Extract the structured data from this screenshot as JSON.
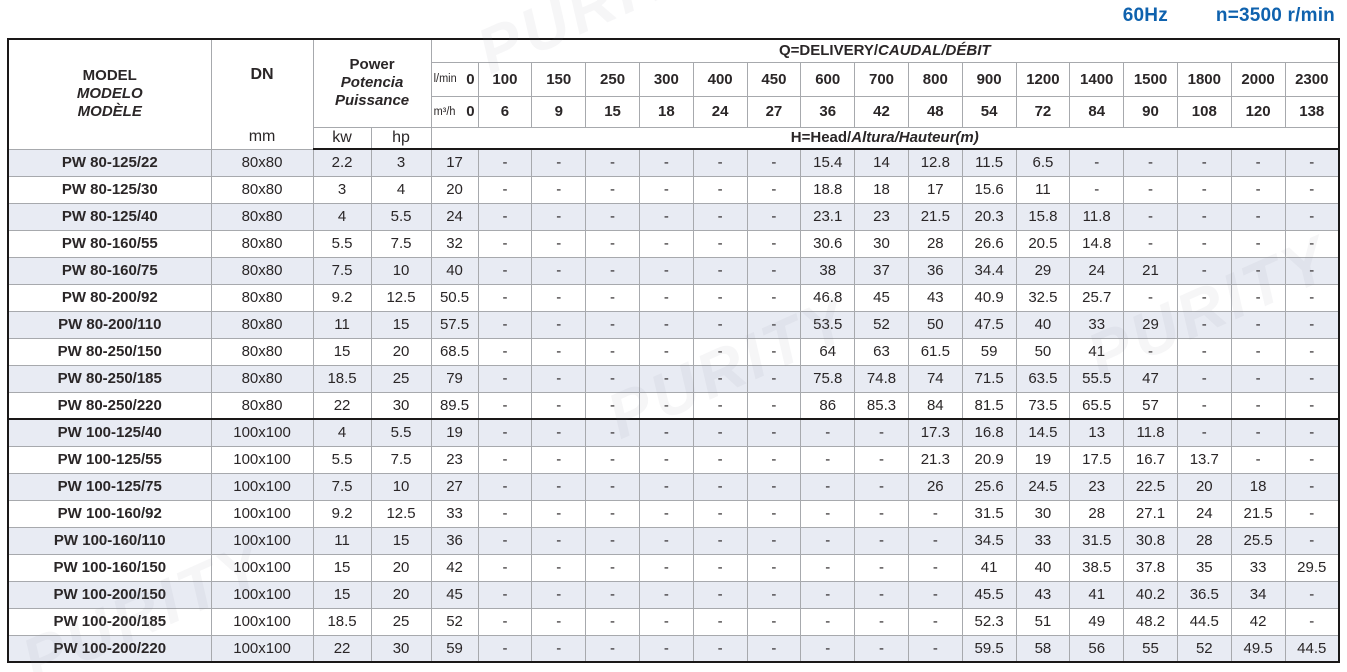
{
  "meta": {
    "frequency_label": "60Hz",
    "speed_label": "n=3500 r/min"
  },
  "watermark": {
    "text": "PURITY"
  },
  "table": {
    "header": {
      "model_line1": "MODEL",
      "model_line2": "MODELO",
      "model_line3": "MODÈLE",
      "dn_label": "DN",
      "dn_unit": "mm",
      "power_line1": "Power",
      "power_line2": "Potencia",
      "power_line3": "Puissance",
      "kw_label": "kw",
      "hp_label": "hp",
      "q_title_plain": "Q=DELIVERY/",
      "q_title_italic": "CAUDAL/DÉBIT",
      "flow_lmin_label": "l/min",
      "flow_m3h_label": "m³/h",
      "head_title_plain": "H=Head/",
      "head_title_italic": "Altura/Hauteur(m)",
      "lmin_values": [
        "0",
        "100",
        "150",
        "250",
        "300",
        "400",
        "450",
        "600",
        "700",
        "800",
        "900",
        "1200",
        "1400",
        "1500",
        "1800",
        "2000",
        "2300"
      ],
      "m3h_values": [
        "0",
        "6",
        "9",
        "15",
        "18",
        "24",
        "27",
        "36",
        "42",
        "48",
        "54",
        "72",
        "84",
        "90",
        "108",
        "120",
        "138"
      ]
    },
    "rows": [
      {
        "model": "PW 80-125/22",
        "dn": "80x80",
        "kw": "2.2",
        "hp": "3",
        "heads": [
          "17",
          "-",
          "-",
          "-",
          "-",
          "-",
          "-",
          "15.4",
          "14",
          "12.8",
          "11.5",
          "6.5",
          "-",
          "-",
          "-",
          "-",
          "-"
        ]
      },
      {
        "model": "PW 80-125/30",
        "dn": "80x80",
        "kw": "3",
        "hp": "4",
        "heads": [
          "20",
          "-",
          "-",
          "-",
          "-",
          "-",
          "-",
          "18.8",
          "18",
          "17",
          "15.6",
          "11",
          "-",
          "-",
          "-",
          "-",
          "-"
        ]
      },
      {
        "model": "PW 80-125/40",
        "dn": "80x80",
        "kw": "4",
        "hp": "5.5",
        "heads": [
          "24",
          "-",
          "-",
          "-",
          "-",
          "-",
          "-",
          "23.1",
          "23",
          "21.5",
          "20.3",
          "15.8",
          "11.8",
          "-",
          "-",
          "-",
          "-"
        ]
      },
      {
        "model": "PW 80-160/55",
        "dn": "80x80",
        "kw": "5.5",
        "hp": "7.5",
        "heads": [
          "32",
          "-",
          "-",
          "-",
          "-",
          "-",
          "-",
          "30.6",
          "30",
          "28",
          "26.6",
          "20.5",
          "14.8",
          "-",
          "-",
          "-",
          "-"
        ]
      },
      {
        "model": "PW 80-160/75",
        "dn": "80x80",
        "kw": "7.5",
        "hp": "10",
        "heads": [
          "40",
          "-",
          "-",
          "-",
          "-",
          "-",
          "-",
          "38",
          "37",
          "36",
          "34.4",
          "29",
          "24",
          "21",
          "-",
          "-",
          "-"
        ]
      },
      {
        "model": "PW 80-200/92",
        "dn": "80x80",
        "kw": "9.2",
        "hp": "12.5",
        "heads": [
          "50.5",
          "-",
          "-",
          "-",
          "-",
          "-",
          "-",
          "46.8",
          "45",
          "43",
          "40.9",
          "32.5",
          "25.7",
          "-",
          "-",
          "-",
          "-"
        ]
      },
      {
        "model": "PW 80-200/110",
        "dn": "80x80",
        "kw": "11",
        "hp": "15",
        "heads": [
          "57.5",
          "-",
          "-",
          "-",
          "-",
          "-",
          "-",
          "53.5",
          "52",
          "50",
          "47.5",
          "40",
          "33",
          "29",
          "-",
          "-",
          "-"
        ]
      },
      {
        "model": "PW 80-250/150",
        "dn": "80x80",
        "kw": "15",
        "hp": "20",
        "heads": [
          "68.5",
          "-",
          "-",
          "-",
          "-",
          "-",
          "-",
          "64",
          "63",
          "61.5",
          "59",
          "50",
          "41",
          "-",
          "-",
          "-",
          "-"
        ]
      },
      {
        "model": "PW 80-250/185",
        "dn": "80x80",
        "kw": "18.5",
        "hp": "25",
        "heads": [
          "79",
          "-",
          "-",
          "-",
          "-",
          "-",
          "-",
          "75.8",
          "74.8",
          "74",
          "71.5",
          "63.5",
          "55.5",
          "47",
          "-",
          "-",
          "-"
        ]
      },
      {
        "model": "PW 80-250/220",
        "dn": "80x80",
        "kw": "22",
        "hp": "30",
        "heads": [
          "89.5",
          "-",
          "-",
          "-",
          "-",
          "-",
          "-",
          "86",
          "85.3",
          "84",
          "81.5",
          "73.5",
          "65.5",
          "57",
          "-",
          "-",
          "-"
        ]
      },
      {
        "model": "PW 100-125/40",
        "dn": "100x100",
        "kw": "4",
        "hp": "5.5",
        "heads": [
          "19",
          "-",
          "-",
          "-",
          "-",
          "-",
          "-",
          "-",
          "-",
          "17.3",
          "16.8",
          "14.5",
          "13",
          "11.8",
          "-",
          "-",
          "-"
        ]
      },
      {
        "model": "PW 100-125/55",
        "dn": "100x100",
        "kw": "5.5",
        "hp": "7.5",
        "heads": [
          "23",
          "-",
          "-",
          "-",
          "-",
          "-",
          "-",
          "-",
          "-",
          "21.3",
          "20.9",
          "19",
          "17.5",
          "16.7",
          "13.7",
          "-",
          "-"
        ]
      },
      {
        "model": "PW 100-125/75",
        "dn": "100x100",
        "kw": "7.5",
        "hp": "10",
        "heads": [
          "27",
          "-",
          "-",
          "-",
          "-",
          "-",
          "-",
          "-",
          "-",
          "26",
          "25.6",
          "24.5",
          "23",
          "22.5",
          "20",
          "18",
          "-"
        ]
      },
      {
        "model": "PW 100-160/92",
        "dn": "100x100",
        "kw": "9.2",
        "hp": "12.5",
        "heads": [
          "33",
          "-",
          "-",
          "-",
          "-",
          "-",
          "-",
          "-",
          "-",
          "-",
          "31.5",
          "30",
          "28",
          "27.1",
          "24",
          "21.5",
          "-"
        ]
      },
      {
        "model": "PW 100-160/110",
        "dn": "100x100",
        "kw": "11",
        "hp": "15",
        "heads": [
          "36",
          "-",
          "-",
          "-",
          "-",
          "-",
          "-",
          "-",
          "-",
          "-",
          "34.5",
          "33",
          "31.5",
          "30.8",
          "28",
          "25.5",
          "-"
        ]
      },
      {
        "model": "PW 100-160/150",
        "dn": "100x100",
        "kw": "15",
        "hp": "20",
        "heads": [
          "42",
          "-",
          "-",
          "-",
          "-",
          "-",
          "-",
          "-",
          "-",
          "-",
          "41",
          "40",
          "38.5",
          "37.8",
          "35",
          "33",
          "29.5"
        ]
      },
      {
        "model": "PW 100-200/150",
        "dn": "100x100",
        "kw": "15",
        "hp": "20",
        "heads": [
          "45",
          "-",
          "-",
          "-",
          "-",
          "-",
          "-",
          "-",
          "-",
          "-",
          "45.5",
          "43",
          "41",
          "40.2",
          "36.5",
          "34",
          "-"
        ]
      },
      {
        "model": "PW 100-200/185",
        "dn": "100x100",
        "kw": "18.5",
        "hp": "25",
        "heads": [
          "52",
          "-",
          "-",
          "-",
          "-",
          "-",
          "-",
          "-",
          "-",
          "-",
          "52.3",
          "51",
          "49",
          "48.2",
          "44.5",
          "42",
          "-"
        ]
      },
      {
        "model": "PW 100-200/220",
        "dn": "100x100",
        "kw": "22",
        "hp": "30",
        "heads": [
          "59",
          "-",
          "-",
          "-",
          "-",
          "-",
          "-",
          "-",
          "-",
          "-",
          "59.5",
          "58",
          "56",
          "55",
          "52",
          "49.5",
          "44.5"
        ]
      }
    ]
  }
}
